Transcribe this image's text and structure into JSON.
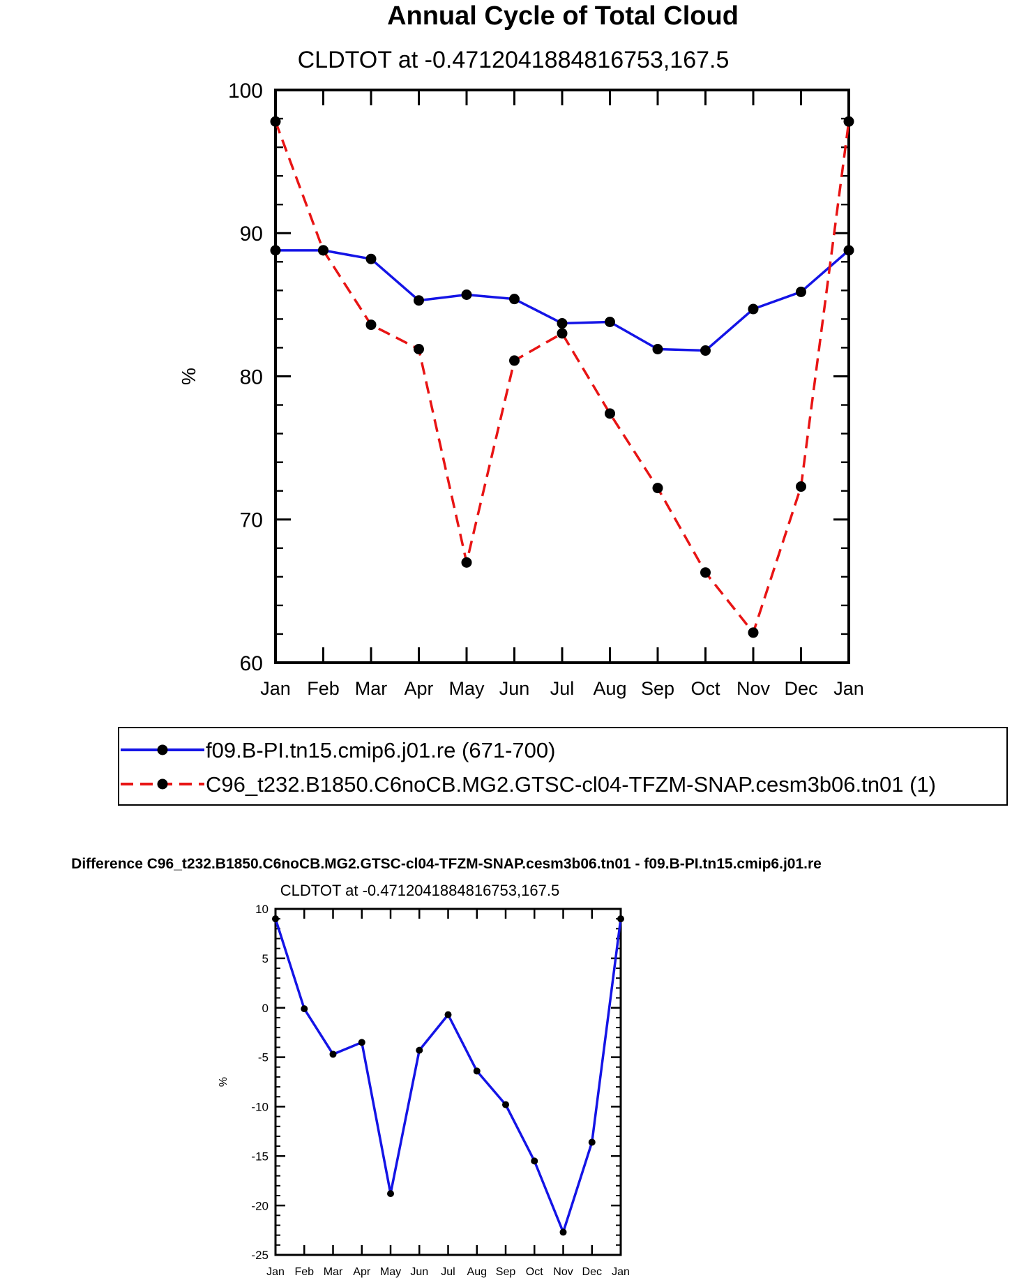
{
  "colors": {
    "series1": "#1414e6",
    "series2": "#e81414",
    "marker": "#000000",
    "axis": "#000000"
  },
  "chart_data": [
    {
      "type": "line",
      "title": "Annual Cycle of Total Cloud",
      "subtitle": "CLDTOT at -0.4712041884816753,167.5",
      "ylabel": "%",
      "xlabel": "",
      "categories": [
        "Jan",
        "Feb",
        "Mar",
        "Apr",
        "May",
        "Jun",
        "Jul",
        "Aug",
        "Sep",
        "Oct",
        "Nov",
        "Dec",
        "Jan"
      ],
      "ylim": [
        60,
        100
      ],
      "yticks": [
        60,
        70,
        80,
        90,
        100
      ],
      "series": [
        {
          "name": "f09.B-PI.tn15.cmip6.j01.re (671-700)",
          "style": "solid",
          "values": [
            88.8,
            88.8,
            88.2,
            85.3,
            85.7,
            85.4,
            83.7,
            83.8,
            81.9,
            81.8,
            84.7,
            85.9,
            88.8
          ]
        },
        {
          "name": "C96_t232.B1850.C6noCB.MG2.GTSC-cl04-TFZM-SNAP.cesm3b06.tn01 (1)",
          "style": "dashed",
          "values": [
            97.8,
            88.8,
            83.6,
            81.9,
            67.0,
            81.1,
            83.0,
            77.4,
            72.2,
            66.3,
            62.1,
            72.3,
            97.8
          ]
        }
      ]
    },
    {
      "type": "line",
      "title": "Difference C96_t232.B1850.C6noCB.MG2.GTSC-cl04-TFZM-SNAP.cesm3b06.tn01 - f09.B-PI.tn15.cmip6.j01.re",
      "subtitle": "CLDTOT at -0.4712041884816753,167.5",
      "ylabel": "%",
      "xlabel": "",
      "categories": [
        "Jan",
        "Feb",
        "Mar",
        "Apr",
        "May",
        "Jun",
        "Jul",
        "Aug",
        "Sep",
        "Oct",
        "Nov",
        "Dec",
        "Jan"
      ],
      "ylim": [
        -25,
        10
      ],
      "yticks": [
        -25,
        -20,
        -15,
        -10,
        -5,
        0,
        5,
        10
      ],
      "series": [
        {
          "name": "difference",
          "style": "solid",
          "values": [
            9.0,
            -0.1,
            -4.7,
            -3.5,
            -18.8,
            -4.3,
            -0.7,
            -6.4,
            -9.8,
            -15.5,
            -22.7,
            -13.6,
            9.0
          ]
        }
      ]
    }
  ]
}
